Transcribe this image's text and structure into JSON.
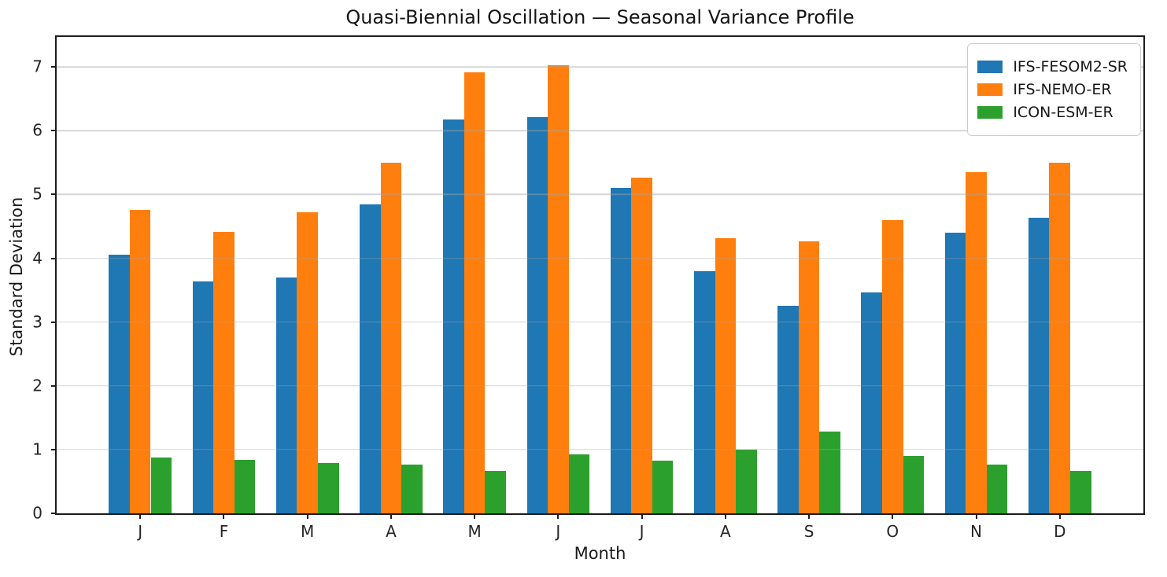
{
  "chart_data": {
    "type": "bar",
    "title": "Quasi-Biennial Oscillation — Seasonal Variance Profile",
    "xlabel": "Month",
    "ylabel": "Standard Deviation",
    "categories": [
      "J",
      "F",
      "M",
      "A",
      "M",
      "J",
      "J",
      "A",
      "S",
      "O",
      "N",
      "D"
    ],
    "series": [
      {
        "name": "IFS-FESOM2-SR",
        "color": "#1f77b4",
        "values": [
          4.06,
          3.64,
          3.7,
          4.84,
          6.18,
          6.21,
          5.1,
          3.8,
          3.26,
          3.46,
          4.4,
          4.64
        ]
      },
      {
        "name": "IFS-NEMO-ER",
        "color": "#ff7f0e",
        "values": [
          4.76,
          4.41,
          4.72,
          5.5,
          6.92,
          7.03,
          5.26,
          4.32,
          4.26,
          4.6,
          5.35,
          5.5
        ]
      },
      {
        "name": "ICON-ESM-ER",
        "color": "#2ca02c",
        "values": [
          0.88,
          0.84,
          0.79,
          0.77,
          0.67,
          0.93,
          0.83,
          1.0,
          1.28,
          0.9,
          0.77,
          0.67
        ]
      }
    ],
    "ylim": [
      0,
      7.47
    ],
    "yticks": [
      0,
      1,
      2,
      3,
      4,
      5,
      6,
      7
    ],
    "grid": "horizontal",
    "legend_position": "upper right",
    "bar_width_units": 0.25,
    "axis_color": "#1c1c1c"
  }
}
